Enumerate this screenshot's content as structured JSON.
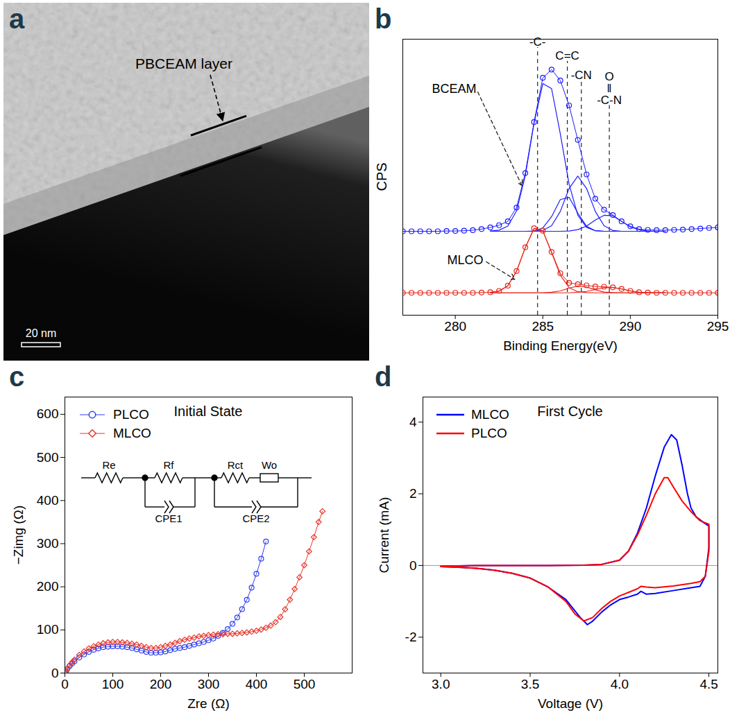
{
  "chart_data": [
    {
      "type": "image",
      "panel_label": "a",
      "annotations": [
        "PBCEAM layer"
      ],
      "scale_bar": "20 nm"
    },
    {
      "type": "line",
      "panel_label": "b",
      "x_label": "Binding Energy(eV)",
      "y_label": "CPS",
      "tick_labels": "x",
      "xlim": [
        277,
        295
      ],
      "ylim": [
        0,
        100
      ],
      "xticks": [
        280,
        285,
        290,
        295
      ],
      "series": [
        {
          "color": "#1a1aff",
          "marker": "circle",
          "line_style": "solid",
          "x": [
            277,
            277.5,
            278,
            278.5,
            279,
            279.5,
            280,
            280.5,
            281,
            281.5,
            282,
            282.5,
            283,
            283.5,
            284,
            284.5,
            285,
            285.5,
            286,
            286.5,
            287,
            287.5,
            288,
            288.5,
            289,
            289.5,
            290,
            290.5,
            291,
            291.5,
            292,
            292.5,
            293,
            293.5,
            294,
            294.5,
            295
          ],
          "values": [
            30.4,
            30.4,
            30.4,
            30.4,
            30.4,
            30.5,
            30.5,
            30.6,
            30.8,
            31.2,
            31.8,
            32.6,
            34,
            39,
            51.5,
            70,
            86,
            89,
            85,
            76,
            63.5,
            51,
            42.2,
            38.2,
            36.3,
            34,
            32.2,
            31.2,
            30.9,
            30.8,
            30.8,
            30.9,
            31,
            31.2,
            31.4,
            31.6,
            31.8
          ]
        },
        {
          "color": "#1a1aff",
          "line_style": "solid",
          "x": [
            282,
            282.5,
            283,
            283.5,
            284,
            284.5,
            285,
            285.5,
            286,
            286.5,
            287,
            287.5,
            288,
            288.5,
            289,
            289.5,
            290,
            290.5,
            291,
            291.5,
            292
          ],
          "values": [
            30.5,
            30.8,
            32.3,
            37.8,
            50.6,
            69.6,
            83.9,
            82.1,
            65.7,
            47.5,
            36.2,
            31.8,
            30.6,
            30.4,
            30.4,
            30.4,
            30.4,
            30.4,
            30.4,
            30.4,
            30.4
          ]
        },
        {
          "color": "#1a1aff",
          "line_style": "solid",
          "x": [
            282,
            282.5,
            283,
            283.5,
            284,
            284.5,
            285,
            285.5,
            286,
            286.5,
            287,
            287.5,
            288,
            288.5,
            289,
            289.5,
            290,
            290.5,
            291,
            291.5,
            292
          ],
          "values": [
            30.4,
            30.4,
            30.4,
            30.4,
            30.4,
            30.5,
            31.6,
            35.7,
            41.9,
            42.7,
            37,
            32.2,
            30.6,
            30.4,
            30.4,
            30.4,
            30.4,
            30.4,
            30.4,
            30.4,
            30.4
          ]
        },
        {
          "color": "#1a1aff",
          "line_style": "solid",
          "x": [
            282,
            282.5,
            283,
            283.5,
            284,
            284.5,
            285,
            285.5,
            286,
            286.5,
            287,
            287.5,
            288,
            288.5,
            289,
            289.5,
            290,
            290.5,
            291,
            291.5,
            292
          ],
          "values": [
            30.4,
            30.4,
            30.4,
            30.4,
            30.4,
            30.4,
            30.7,
            32.4,
            37.6,
            45.9,
            50.4,
            45.9,
            37.6,
            32.4,
            30.7,
            30.4,
            30.4,
            30.4,
            30.4,
            30.4,
            30.4
          ]
        },
        {
          "color": "#1a1aff",
          "line_style": "solid",
          "x": [
            282,
            282.5,
            283,
            283.5,
            284,
            284.5,
            285,
            285.5,
            286,
            286.5,
            287,
            287.5,
            288,
            288.5,
            289,
            289.5,
            290,
            290.5,
            291,
            291.5,
            292
          ],
          "values": [
            30.4,
            30.4,
            30.4,
            30.4,
            30.4,
            30.4,
            30.4,
            30.4,
            30.4,
            30.5,
            31,
            32.3,
            34.5,
            36.2,
            36,
            34,
            32,
            30.9,
            30.5,
            30.4,
            30.4
          ]
        },
        {
          "color": "#e8251a",
          "marker": "circle",
          "line_style": "solid",
          "x": [
            277,
            277.5,
            278,
            278.5,
            279,
            279.5,
            280,
            280.5,
            281,
            281.5,
            282,
            282.5,
            283,
            283.5,
            284,
            284.5,
            285,
            285.5,
            286,
            286.5,
            287,
            287.5,
            288,
            288.5,
            289,
            289.5,
            290,
            290.5,
            291,
            291.5,
            292,
            292.5,
            293,
            293.5,
            294,
            294.5,
            295
          ],
          "values": [
            8.1,
            8.1,
            8.1,
            8.1,
            8.1,
            8.1,
            8.1,
            8.1,
            8.1,
            8.2,
            8.3,
            8.8,
            10.7,
            16,
            24.6,
            31.5,
            30.6,
            22.9,
            15.2,
            11.7,
            11.2,
            10.8,
            10.4,
            10.3,
            10.1,
            9.5,
            8.8,
            8.3,
            8.2,
            8.1,
            8.1,
            8.1,
            8.1,
            8.1,
            8.1,
            8.1,
            8.1
          ]
        },
        {
          "color": "#e8251a",
          "line_style": "solid",
          "x": [
            282,
            282.5,
            283,
            283.5,
            284,
            284.5,
            285,
            285.5,
            286,
            286.5,
            287,
            287.5,
            288,
            288.5,
            289,
            289.5,
            290,
            290.5,
            291,
            291.5,
            292
          ],
          "values": [
            8.2,
            8.7,
            10.6,
            15.9,
            24.5,
            31.4,
            30.5,
            22.7,
            14.5,
            10,
            8.5,
            8.2,
            8.1,
            8.1,
            8.1,
            8.1,
            8.1,
            8.1,
            8.1,
            8.1,
            8.1
          ]
        },
        {
          "color": "#e8251a",
          "line_style": "solid",
          "x": [
            282,
            282.5,
            283,
            283.5,
            284,
            284.5,
            285,
            285.5,
            286,
            286.5,
            287,
            287.5,
            288,
            288.5,
            289,
            289.5,
            290,
            290.5,
            291,
            291.5,
            292
          ],
          "values": [
            8.1,
            8.1,
            8.1,
            8.1,
            8.1,
            8.1,
            8.1,
            8.3,
            8.8,
            9.8,
            10.6,
            10.2,
            9.2,
            8.4,
            8.2,
            8.1,
            8.1,
            8.1,
            8.1,
            8.1,
            8.1
          ]
        },
        {
          "color": "#e8251a",
          "line_style": "solid",
          "x": [
            282,
            282.5,
            283,
            283.5,
            284,
            284.5,
            285,
            285.5,
            286,
            286.5,
            287,
            287.5,
            288,
            288.5,
            289,
            289.5,
            290,
            290.5,
            291,
            291.5,
            292
          ],
          "values": [
            8.1,
            8.1,
            8.1,
            8.1,
            8.1,
            8.1,
            8.1,
            8.1,
            8.1,
            8.1,
            8.3,
            8.6,
            9.3,
            10,
            10,
            9.5,
            8.8,
            8.3,
            8.1,
            8.1,
            8.1
          ]
        }
      ],
      "vlines": [
        {
          "x": 284.7,
          "y": 97,
          "label": "-C-"
        },
        {
          "x": 286.4,
          "y": 92,
          "label": "C=C"
        },
        {
          "x": 287.2,
          "y": 85,
          "label": "-CN"
        },
        {
          "x": 288.8,
          "y": 76,
          "label": "O\n‖\n-C-N"
        }
      ],
      "annotations": [
        {
          "text": "BCEAM",
          "x": 281.2,
          "y": 82,
          "arrow_to": [
            283.8,
            47
          ]
        },
        {
          "text": "MLCO",
          "x": 281.6,
          "y": 20,
          "arrow_to": [
            283.4,
            13
          ]
        }
      ]
    },
    {
      "type": "scatter",
      "panel_label": "c",
      "title": "Initial State",
      "x_label": "Zre (Ω)",
      "y_label": "−Zimg (Ω)",
      "xlim": [
        0,
        600
      ],
      "ylim": [
        0,
        640
      ],
      "xticks": [
        0,
        100,
        200,
        300,
        400,
        500
      ],
      "yticks": [
        0,
        100,
        200,
        300,
        400,
        500,
        600
      ],
      "legend": "top-left",
      "circuit_labels": [
        "Re",
        "Rf",
        "CPE1",
        "Rct",
        "Wo",
        "CPE2"
      ],
      "series": [
        {
          "name": "PLCO",
          "color": "#2a3cf0",
          "marker": "circle",
          "line_style": "solid",
          "x": [
            2,
            5,
            10,
            15,
            20,
            30,
            40,
            50,
            60,
            70,
            80,
            90,
            100,
            110,
            120,
            130,
            140,
            150,
            160,
            170,
            180,
            190,
            200,
            210,
            220,
            230,
            240,
            250,
            260,
            270,
            280,
            290,
            300,
            310,
            320,
            330,
            340,
            350,
            360,
            370,
            380,
            390,
            400,
            410,
            420
          ],
          "values": [
            4,
            9,
            16,
            22,
            27,
            36,
            43,
            49,
            54,
            57,
            60,
            61,
            62,
            62,
            61,
            60,
            58,
            55,
            52,
            49,
            47,
            47,
            48,
            50,
            53,
            56,
            58,
            60,
            63,
            66,
            69,
            72,
            76,
            80,
            86,
            93,
            102,
            114,
            129,
            148,
            170,
            198,
            230,
            265,
            305
          ]
        },
        {
          "name": "MLCO",
          "color": "#e8362b",
          "marker": "diamond",
          "line_style": "solid",
          "x": [
            2,
            5,
            10,
            15,
            20,
            30,
            40,
            50,
            60,
            70,
            80,
            90,
            100,
            110,
            120,
            130,
            140,
            150,
            160,
            170,
            180,
            190,
            200,
            210,
            220,
            230,
            240,
            250,
            260,
            270,
            280,
            290,
            300,
            310,
            320,
            330,
            340,
            350,
            360,
            370,
            380,
            390,
            400,
            410,
            420,
            430,
            440,
            450,
            460,
            470,
            480,
            490,
            500,
            510,
            520,
            530,
            538
          ],
          "values": [
            5,
            10,
            18,
            25,
            31,
            42,
            50,
            57,
            62,
            66,
            69,
            71,
            72,
            72,
            71,
            70,
            68,
            66,
            63,
            60,
            58,
            58,
            60,
            63,
            66,
            70,
            74,
            77,
            80,
            82,
            85,
            86,
            88,
            89,
            90,
            90,
            91,
            91,
            92,
            93,
            94,
            96,
            98,
            101,
            105,
            110,
            118,
            130,
            148,
            170,
            195,
            222,
            250,
            282,
            315,
            350,
            375
          ]
        }
      ]
    },
    {
      "type": "line",
      "panel_label": "d",
      "title": "First Cycle",
      "x_label": "Voltage (V)",
      "y_label": "Current (mA)",
      "xlim": [
        2.9,
        4.55
      ],
      "ylim": [
        -3,
        4.7
      ],
      "xticks": [
        {
          "value": 3,
          "label": "3.0"
        },
        3.5,
        {
          "value": 4,
          "label": "4.0"
        },
        4.5
      ],
      "yticks": [
        -2,
        0,
        2,
        4
      ],
      "hlines": [
        0
      ],
      "legend": "top-left",
      "series": [
        {
          "name": "MLCO",
          "color": "#0000ff",
          "line_style": "solid",
          "x": [
            3.0,
            3.2,
            3.4,
            3.6,
            3.8,
            3.9,
            4.0,
            4.05,
            4.1,
            4.15,
            4.2,
            4.25,
            4.29,
            4.32,
            4.35,
            4.38,
            4.4,
            4.43,
            4.47,
            4.5,
            4.5,
            4.48,
            4.45,
            4.4,
            4.3,
            4.2,
            4.15,
            4.12,
            4.1,
            4.05,
            4.0,
            3.95,
            3.9,
            3.85,
            3.82,
            3.78,
            3.7,
            3.6,
            3.5,
            3.4,
            3.3,
            3.2,
            3.1,
            3.0
          ],
          "values": [
            -0.02,
            0,
            0,
            0,
            0.01,
            0.03,
            0.15,
            0.4,
            0.9,
            1.6,
            2.5,
            3.3,
            3.65,
            3.5,
            2.8,
            2.0,
            1.6,
            1.35,
            1.2,
            1.1,
            0.5,
            -0.3,
            -0.58,
            -0.62,
            -0.7,
            -0.78,
            -0.8,
            -0.72,
            -0.8,
            -0.88,
            -0.95,
            -1.1,
            -1.3,
            -1.55,
            -1.65,
            -1.45,
            -0.95,
            -0.6,
            -0.35,
            -0.22,
            -0.13,
            -0.08,
            -0.05,
            -0.03
          ]
        },
        {
          "name": "PLCO",
          "color": "#ff0000",
          "line_style": "solid",
          "x": [
            3.0,
            3.2,
            3.4,
            3.6,
            3.8,
            3.9,
            4.0,
            4.05,
            4.1,
            4.15,
            4.2,
            4.25,
            4.27,
            4.3,
            4.35,
            4.4,
            4.45,
            4.5,
            4.5,
            4.48,
            4.45,
            4.4,
            4.3,
            4.2,
            4.15,
            4.12,
            4.1,
            4.05,
            4.0,
            3.95,
            3.9,
            3.85,
            3.8,
            3.75,
            3.7,
            3.6,
            3.5,
            3.4,
            3.3,
            3.2,
            3.1,
            3.0
          ],
          "values": [
            -0.02,
            0,
            0,
            0,
            0.01,
            0.03,
            0.15,
            0.4,
            0.85,
            1.4,
            2.0,
            2.45,
            2.45,
            2.2,
            1.8,
            1.5,
            1.25,
            1.15,
            0.4,
            -0.3,
            -0.45,
            -0.5,
            -0.57,
            -0.62,
            -0.6,
            -0.58,
            -0.65,
            -0.75,
            -0.85,
            -1.0,
            -1.2,
            -1.45,
            -1.55,
            -1.35,
            -1.0,
            -0.6,
            -0.35,
            -0.22,
            -0.13,
            -0.08,
            -0.05,
            -0.03
          ]
        }
      ]
    }
  ]
}
